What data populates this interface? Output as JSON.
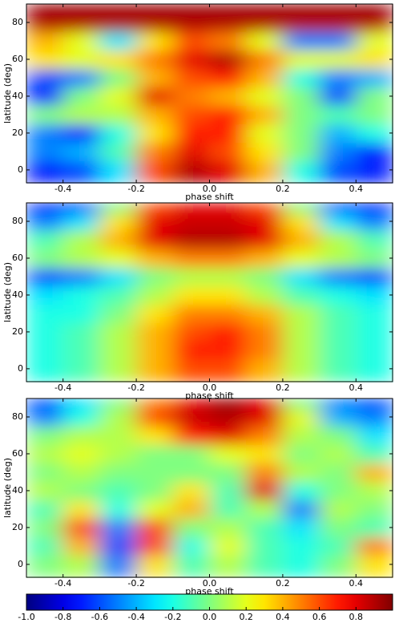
{
  "chart_data": [
    {
      "type": "heatmap",
      "colormap": "jet",
      "zlim": [
        -1,
        1
      ],
      "xlabel": "phase shift",
      "ylabel": "latitude (deg)",
      "x": [
        -0.45,
        -0.35,
        -0.25,
        -0.15,
        -0.05,
        0.05,
        0.15,
        0.25,
        0.35,
        0.45
      ],
      "y": [
        0,
        10,
        20,
        30,
        40,
        50,
        60,
        70,
        80,
        88
      ],
      "xlim": [
        -0.5,
        0.5
      ],
      "ylim": [
        -7,
        90
      ],
      "xticks": [
        -0.4,
        -0.2,
        {
          "value": 0,
          "label": "0.0"
        },
        0.2,
        0.4
      ],
      "yticks": [
        0,
        20,
        40,
        60,
        80
      ],
      "z": [
        [
          -0.7,
          -0.6,
          -0.3,
          0.6,
          0.9,
          0.8,
          0.4,
          -0.2,
          -0.6,
          -0.7
        ],
        [
          -0.5,
          -0.4,
          -0.1,
          0.5,
          0.8,
          0.6,
          0.3,
          0.0,
          -0.5,
          -0.7
        ],
        [
          -0.5,
          -0.7,
          -0.2,
          0.3,
          0.7,
          0.7,
          0.2,
          0.0,
          -0.4,
          -0.2
        ],
        [
          0.0,
          0.1,
          0.1,
          0.4,
          0.6,
          0.7,
          0.4,
          0.0,
          -0.1,
          0.0
        ],
        [
          -0.7,
          0.0,
          0.2,
          0.8,
          0.5,
          0.4,
          0.2,
          0.0,
          -0.6,
          0.0
        ],
        [
          -0.6,
          -0.5,
          0.0,
          0.4,
          0.6,
          0.7,
          0.4,
          -0.2,
          -0.5,
          -0.4
        ],
        [
          0.3,
          0.2,
          0.3,
          0.5,
          0.8,
          0.9,
          0.5,
          0.2,
          0.2,
          0.3
        ],
        [
          0.4,
          0.2,
          -0.3,
          0.3,
          0.6,
          0.5,
          0.2,
          -0.5,
          -0.5,
          0.2
        ],
        [
          0.9,
          0.9,
          0.9,
          0.9,
          0.9,
          0.9,
          0.9,
          0.9,
          0.9,
          0.9
        ],
        [
          0.95,
          0.95,
          0.95,
          0.95,
          0.95,
          0.95,
          0.95,
          0.95,
          0.95,
          0.95
        ]
      ]
    },
    {
      "type": "heatmap",
      "colormap": "jet",
      "zlim": [
        -1,
        1
      ],
      "xlabel": "phase shift",
      "ylabel": "latitude (deg)",
      "x": [
        -0.45,
        -0.35,
        -0.25,
        -0.15,
        -0.05,
        0.05,
        0.15,
        0.25,
        0.35,
        0.45
      ],
      "y": [
        0,
        10,
        20,
        30,
        40,
        50,
        60,
        70,
        80,
        88
      ],
      "xlim": [
        -0.5,
        0.5
      ],
      "ylim": [
        -7,
        90
      ],
      "xticks": [
        -0.4,
        -0.2,
        {
          "value": 0,
          "label": "0.0"
        },
        0.2,
        0.4
      ],
      "yticks": [
        0,
        20,
        40,
        60,
        80
      ],
      "z": [
        [
          -0.2,
          -0.1,
          0.1,
          0.4,
          0.6,
          0.6,
          0.4,
          0.1,
          -0.1,
          -0.2
        ],
        [
          -0.2,
          -0.1,
          0.1,
          0.4,
          0.7,
          0.7,
          0.5,
          0.1,
          -0.1,
          -0.2
        ],
        [
          -0.2,
          -0.1,
          0.1,
          0.4,
          0.6,
          0.7,
          0.5,
          0.1,
          -0.1,
          -0.2
        ],
        [
          -0.2,
          -0.2,
          0.0,
          0.3,
          0.5,
          0.5,
          0.4,
          0.1,
          -0.1,
          -0.2
        ],
        [
          -0.3,
          -0.2,
          -0.1,
          0.1,
          0.3,
          0.3,
          0.1,
          -0.1,
          -0.2,
          -0.3
        ],
        [
          -0.6,
          -0.5,
          -0.3,
          0.0,
          0.1,
          0.1,
          0.0,
          -0.3,
          -0.5,
          -0.6
        ],
        [
          0.0,
          0.1,
          0.2,
          0.4,
          0.5,
          0.5,
          0.4,
          0.2,
          0.1,
          0.0
        ],
        [
          -0.1,
          0.1,
          0.4,
          0.8,
          0.9,
          0.9,
          0.8,
          0.4,
          0.1,
          -0.1
        ],
        [
          -0.5,
          -0.3,
          0.3,
          0.8,
          0.85,
          0.85,
          0.8,
          0.3,
          -0.3,
          -0.5
        ],
        [
          -0.7,
          -0.6,
          0.0,
          0.6,
          0.8,
          0.8,
          0.6,
          0.0,
          -0.6,
          -0.7
        ]
      ]
    },
    {
      "type": "heatmap",
      "colormap": "jet",
      "zlim": [
        -1,
        1
      ],
      "xlabel": "phase shift",
      "ylabel": "latitude (deg)",
      "x": [
        -0.45,
        -0.35,
        -0.25,
        -0.15,
        -0.05,
        0.05,
        0.15,
        0.25,
        0.35,
        0.45
      ],
      "y": [
        0,
        10,
        20,
        30,
        40,
        50,
        60,
        70,
        80,
        88
      ],
      "xlim": [
        -0.5,
        0.5
      ],
      "ylim": [
        -7,
        90
      ],
      "xticks": [
        -0.4,
        -0.2,
        {
          "value": 0,
          "label": "0.0"
        },
        0.2,
        0.4
      ],
      "yticks": [
        0,
        20,
        40,
        60,
        80
      ],
      "z": [
        [
          0.0,
          0.1,
          -0.5,
          0.3,
          -0.1,
          0.1,
          -0.1,
          -0.2,
          0.0,
          0.3
        ],
        [
          -0.1,
          0.4,
          -0.6,
          0.6,
          -0.2,
          0.2,
          -0.1,
          -0.2,
          -0.1,
          0.5
        ],
        [
          0.0,
          0.6,
          -0.5,
          0.6,
          0.0,
          0.1,
          -0.1,
          -0.3,
          0.0,
          -0.1
        ],
        [
          -0.1,
          0.3,
          -0.2,
          0.2,
          0.4,
          -0.1,
          0.1,
          -0.5,
          0.1,
          0.0
        ],
        [
          0.1,
          0.0,
          -0.1,
          0.0,
          0.3,
          -0.1,
          0.8,
          -0.2,
          0.0,
          0.1
        ],
        [
          0.0,
          0.1,
          0.0,
          0.0,
          0.0,
          0.0,
          0.5,
          0.1,
          0.0,
          0.4
        ],
        [
          0.1,
          0.2,
          0.1,
          0.0,
          0.0,
          0.2,
          0.3,
          0.0,
          0.1,
          -0.1
        ],
        [
          0.0,
          0.1,
          0.1,
          0.3,
          0.7,
          0.8,
          0.5,
          0.1,
          0.0,
          -0.3
        ],
        [
          -0.5,
          -0.2,
          0.1,
          0.6,
          0.85,
          0.9,
          0.8,
          0.2,
          -0.4,
          -0.5
        ],
        [
          -0.6,
          -0.3,
          0.0,
          0.5,
          0.8,
          0.95,
          0.8,
          0.0,
          -0.5,
          -0.6
        ]
      ]
    },
    {
      "type": "colorbar",
      "colormap": "jet",
      "lim": [
        -1,
        1
      ],
      "ticks": [
        {
          "value": -1,
          "label": "-1.0"
        },
        -0.8,
        -0.6,
        -0.4,
        -0.2,
        {
          "value": 0,
          "label": "0.0"
        },
        0.2,
        0.4,
        0.6,
        0.8
      ]
    }
  ]
}
